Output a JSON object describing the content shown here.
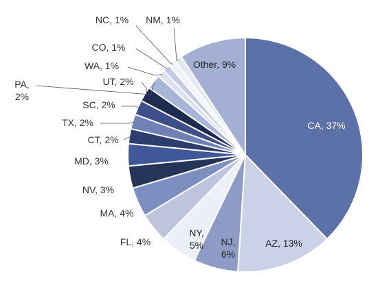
{
  "chart_data": {
    "type": "pie",
    "slices": [
      {
        "label": "CA",
        "value": 37,
        "text": "CA, 37%",
        "color": "#5b71a8"
      },
      {
        "label": "AZ",
        "value": 13,
        "text": "AZ, 13%",
        "color": "#cbd1e6"
      },
      {
        "label": "NJ",
        "value": 6,
        "text_lines": [
          "NJ,",
          "6%"
        ],
        "color": "#8e9cc5"
      },
      {
        "label": "NY",
        "value": 5,
        "text_lines": [
          "NY,",
          "5%"
        ],
        "color": "#eceff7"
      },
      {
        "label": "FL",
        "value": 4,
        "text": "FL, 4%",
        "color": "#bcc4de"
      },
      {
        "label": "MA",
        "value": 4,
        "text": "MA, 4%",
        "color": "#7d8fc0"
      },
      {
        "label": "NV",
        "value": 3,
        "text": "NV, 3%",
        "color": "#253459"
      },
      {
        "label": "MD",
        "value": 3,
        "text": "MD, 3%",
        "color": "#40579a"
      },
      {
        "label": "CT",
        "value": 2,
        "text": "CT, 2%",
        "color": "#2c3e6e"
      },
      {
        "label": "TX",
        "value": 2,
        "text": "TX, 2%",
        "color": "#7081b5"
      },
      {
        "label": "SC",
        "value": 2,
        "text": "SC, 2%",
        "color": "#3c4f8a"
      },
      {
        "label": "UT",
        "value": 2,
        "text": "UT, 2%",
        "color": "#1e2c52"
      },
      {
        "label": "PA",
        "value": 2,
        "text_lines": [
          "PA,",
          "2%"
        ],
        "color": "#a9b5d8"
      },
      {
        "label": "WA",
        "value": 1,
        "text": "WA, 1%",
        "color": "#dce1ef"
      },
      {
        "label": "CO",
        "value": 1,
        "text": "CO, 1%",
        "color": "#c4cbe3"
      },
      {
        "label": "NC",
        "value": 1,
        "text": "NC, 1%",
        "color": "#f1f3f9"
      },
      {
        "label": "NM",
        "value": 1,
        "text": "NM, 1%",
        "color": "#e4e8f3"
      },
      {
        "label": "Other",
        "value": 9,
        "text": "Other, 9%",
        "color": "#a3b0d4"
      }
    ],
    "start": "12 o'clock",
    "direction": "clockwise",
    "legend": "none"
  }
}
